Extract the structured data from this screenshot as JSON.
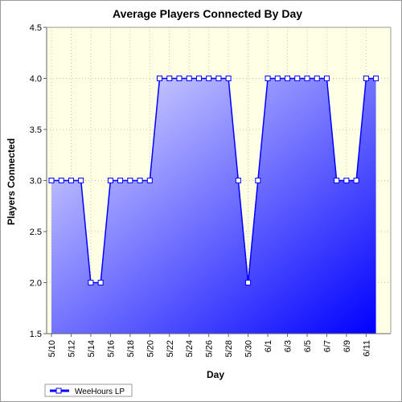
{
  "chart_data": {
    "type": "area",
    "title": "Average Players Connected By Day",
    "xlabel": "Day",
    "ylabel": "Players Connected",
    "ylim": [
      1.5,
      4.5
    ],
    "y_ticks": [
      "1.5",
      "2.0",
      "2.5",
      "3.0",
      "3.5",
      "4.0",
      "4.5"
    ],
    "x_tick_labels": [
      "5/10",
      "5/12",
      "5/14",
      "5/16",
      "5/18",
      "5/20",
      "5/22",
      "5/24",
      "5/26",
      "5/28",
      "5/30",
      "6/1",
      "6/3",
      "6/5",
      "6/7",
      "6/9",
      "6/11"
    ],
    "grid": true,
    "legend_position": "bottom-left",
    "colors": {
      "plot_background": "#ffffe6",
      "series_line": "#0000ff",
      "area_light": "#e0e0ff",
      "area_dark": "#0000ff"
    },
    "series": [
      {
        "name": "WeeHours LP",
        "dates": [
          "5/10",
          "5/11",
          "5/12",
          "5/13",
          "5/14",
          "5/15",
          "5/16",
          "5/17",
          "5/18",
          "5/19",
          "5/20",
          "5/21",
          "5/22",
          "5/23",
          "5/24",
          "5/25",
          "5/26",
          "5/27",
          "5/28",
          "5/29",
          "5/30",
          "5/31",
          "6/1",
          "6/2",
          "6/3",
          "6/4",
          "6/5",
          "6/6",
          "6/7",
          "6/8",
          "6/9",
          "6/10",
          "6/11",
          "6/12"
        ],
        "values": [
          3.0,
          3.0,
          3.0,
          3.0,
          2.0,
          2.0,
          3.0,
          3.0,
          3.0,
          3.0,
          3.0,
          4.0,
          4.0,
          4.0,
          4.0,
          4.0,
          4.0,
          4.0,
          4.0,
          3.0,
          2.0,
          3.0,
          4.0,
          4.0,
          4.0,
          4.0,
          4.0,
          4.0,
          4.0,
          3.0,
          3.0,
          3.0,
          4.0,
          4.0
        ]
      }
    ]
  }
}
